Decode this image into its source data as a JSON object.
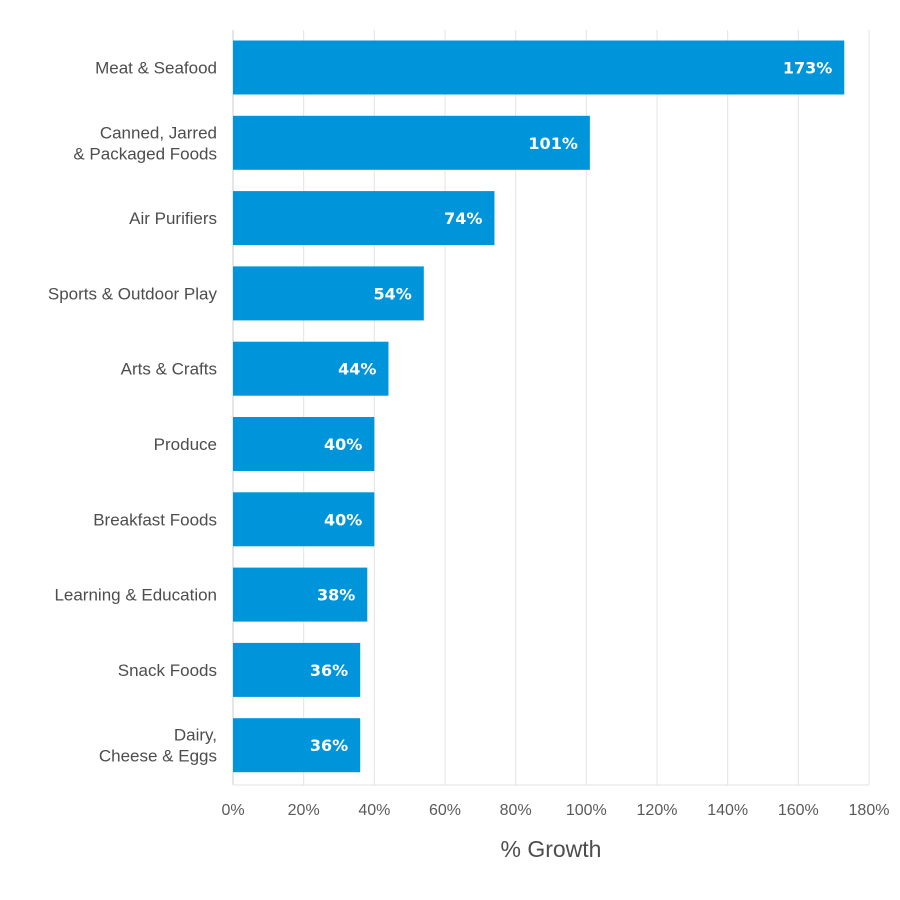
{
  "chart_data": {
    "type": "bar",
    "orientation": "horizontal",
    "categories": [
      [
        "Meat & Seafood"
      ],
      [
        "Canned, Jarred",
        "& Packaged Foods"
      ],
      [
        "Air Purifiers"
      ],
      [
        "Sports & Outdoor Play"
      ],
      [
        "Arts & Crafts"
      ],
      [
        "Produce"
      ],
      [
        "Breakfast Foods"
      ],
      [
        "Learning & Education"
      ],
      [
        "Snack Foods"
      ],
      [
        "Dairy,",
        "Cheese & Eggs"
      ]
    ],
    "values": [
      173,
      101,
      74,
      54,
      44,
      40,
      40,
      38,
      36,
      36
    ],
    "value_labels": [
      "173%",
      "101%",
      "74%",
      "54%",
      "44%",
      "40%",
      "40%",
      "38%",
      "36%",
      "36%"
    ],
    "xlabel": "% Growth",
    "ylabel": "",
    "xlim": [
      0,
      180
    ],
    "xticks": [
      0,
      20,
      40,
      60,
      80,
      100,
      120,
      140,
      160,
      180
    ],
    "xtick_labels": [
      "0%",
      "20%",
      "40%",
      "60%",
      "80%",
      "100%",
      "120%",
      "140%",
      "160%",
      "180%"
    ],
    "grid": "vertical",
    "legend": "none",
    "colors": {
      "bar": "#0095DA",
      "gridline": "#e3e3e3",
      "axis": "#cccccc",
      "value_text": "#ffffff"
    }
  }
}
